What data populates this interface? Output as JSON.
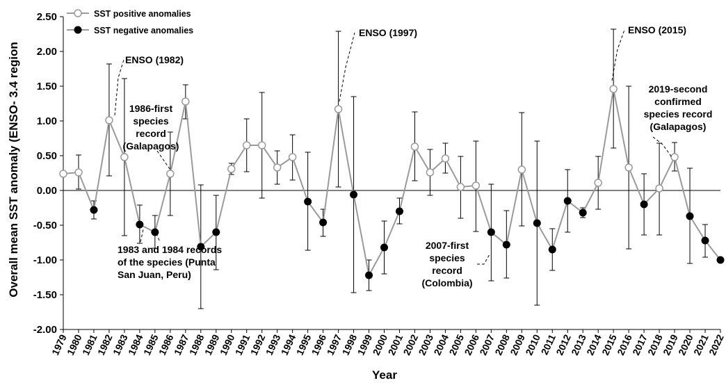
{
  "chart_data": {
    "type": "line",
    "ylabel": "Overall mean  SST anomaly (ENSO- 3.4 region",
    "xlabel": "Year",
    "ylim": [
      -2.0,
      2.5
    ],
    "yticks": [
      "2.50",
      "2.00",
      "1.50",
      "1.00",
      "0.50",
      "0.00",
      "-0.50",
      "-1.00",
      "-1.50",
      "-2.00"
    ],
    "grid": false,
    "legend_position": "top-left",
    "x": [
      "1979",
      "1980",
      "1981",
      "1982",
      "1983",
      "1984",
      "1985",
      "1986",
      "1987",
      "1988",
      "1989",
      "1990",
      "1991",
      "1992",
      "1993",
      "1994",
      "1995",
      "1996",
      "1997",
      "1998",
      "1999",
      "2000",
      "2001",
      "2002",
      "2003",
      "2004",
      "2005",
      "2006",
      "2007",
      "2008",
      "2009",
      "2010",
      "2011",
      "2012",
      "2013",
      "2014",
      "2015",
      "2016",
      "2017",
      "2018",
      "2019",
      "2020",
      "2021",
      "2022"
    ],
    "values": [
      0.24,
      0.26,
      -0.28,
      1.01,
      0.48,
      -0.49,
      -0.6,
      0.24,
      1.28,
      -0.81,
      -0.6,
      0.31,
      0.65,
      0.65,
      0.33,
      0.48,
      -0.16,
      -0.46,
      1.17,
      -0.06,
      -1.22,
      -0.82,
      -0.3,
      0.63,
      0.26,
      0.46,
      0.05,
      0.07,
      -0.6,
      -0.78,
      0.3,
      -0.47,
      -0.85,
      -0.15,
      -0.32,
      0.11,
      1.46,
      0.33,
      -0.2,
      0.03,
      0.48,
      -0.37,
      -0.72,
      -1.0
    ],
    "err_upper": [
      0.24,
      0.51,
      -0.15,
      1.82,
      1.61,
      -0.21,
      -0.36,
      0.84,
      1.52,
      0.08,
      -0.07,
      0.39,
      1.03,
      1.41,
      0.57,
      0.8,
      0.55,
      -0.27,
      2.29,
      1.35,
      -1.0,
      -0.44,
      -0.11,
      1.13,
      0.59,
      0.68,
      0.49,
      0.71,
      0.09,
      -0.29,
      1.12,
      0.71,
      -0.55,
      0.3,
      -0.25,
      0.49,
      2.32,
      1.5,
      0.24,
      0.68,
      0.69,
      0.32,
      -0.49,
      -1.0
    ],
    "err_lower": [
      0.24,
      0.02,
      -0.41,
      0.21,
      -0.65,
      -0.76,
      -0.83,
      -0.36,
      1.03,
      -1.7,
      -1.14,
      0.23,
      0.27,
      -0.11,
      0.09,
      0.15,
      -0.86,
      -0.66,
      0.05,
      -1.47,
      -1.44,
      -1.2,
      -0.48,
      0.14,
      -0.07,
      0.25,
      -0.4,
      -0.59,
      -1.3,
      -1.26,
      -0.51,
      -1.65,
      -1.15,
      -0.6,
      -0.39,
      -0.27,
      0.61,
      -0.84,
      -0.64,
      -0.64,
      0.28,
      -1.05,
      -0.96,
      -1.0
    ],
    "positive_label": "SST positive anomalies",
    "negative_label": "SST negative anomalies",
    "zero_line": 0.0,
    "annotations": [
      {
        "lines": [
          "ENSO (1982)"
        ],
        "target_year": "1982"
      },
      {
        "lines": [
          "ENSO (1997)"
        ],
        "target_year": "1997"
      },
      {
        "lines": [
          "ENSO (2015)"
        ],
        "target_year": "2015"
      },
      {
        "lines": [
          "1986-first",
          "species",
          "record",
          "(Galapagos)"
        ],
        "target_year": "1986"
      },
      {
        "lines": [
          "1983 and 1984 records",
          "of the species  (Punta",
          "San Juan, Peru)"
        ],
        "target_year": "1984"
      },
      {
        "lines": [
          "2007-first",
          "species",
          "record",
          "(Colombia)"
        ],
        "target_year": "2007"
      },
      {
        "lines": [
          "2019-second",
          "confirmed",
          "species record",
          "(Galapagos)"
        ],
        "target_year": "2019"
      }
    ]
  },
  "colors": {
    "line": "#9a9a9a",
    "positive_fill": "#ffffff",
    "positive_stroke": "#9a9a9a",
    "negative_fill": "#000000",
    "axis": "#000000",
    "errorbar": "#000000"
  }
}
